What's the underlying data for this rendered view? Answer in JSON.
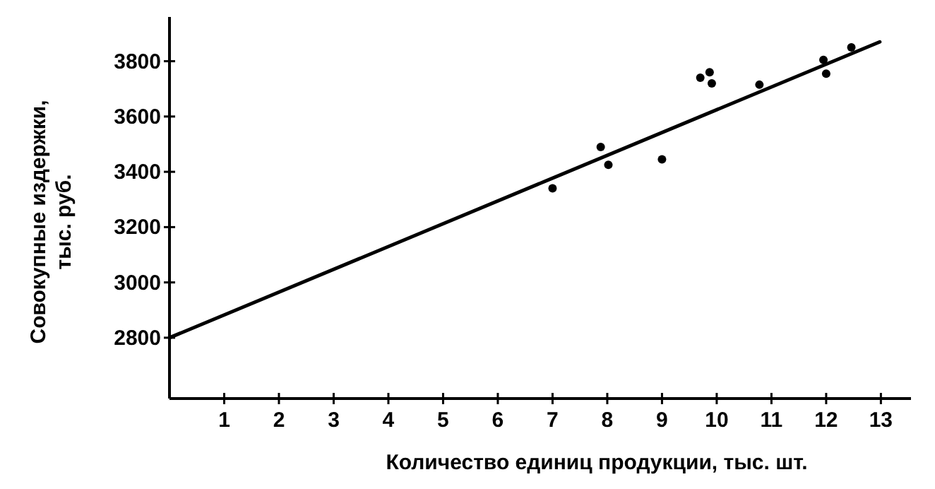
{
  "chart_data": {
    "type": "scatter",
    "xlabel": "Количество единиц продукции, тыс. шт.",
    "ylabel": "Совокупные издержки,\nтыс. руб.",
    "xlim": [
      0,
      13.55
    ],
    "ylim": [
      2580,
      3960
    ],
    "xticks": [
      1,
      2,
      3,
      4,
      5,
      6,
      7,
      8,
      9,
      10,
      11,
      12,
      13
    ],
    "yticks": [
      2800,
      3000,
      3200,
      3400,
      3600,
      3800
    ],
    "series": [
      {
        "marker": "circle",
        "color": "#000000",
        "x": [
          7,
          7.88,
          8.02,
          9,
          9.7,
          9.87,
          9.91,
          10.78,
          11.95,
          12,
          12.46
        ],
        "values": [
          3340,
          3490,
          3425,
          3445,
          3740,
          3760,
          3720,
          3715,
          3805,
          3755,
          3850
        ]
      },
      {
        "type": "line",
        "marker": "none",
        "color": "#000000",
        "x": [
          0,
          12.98
        ],
        "values": [
          2800,
          3870
        ]
      }
    ]
  }
}
